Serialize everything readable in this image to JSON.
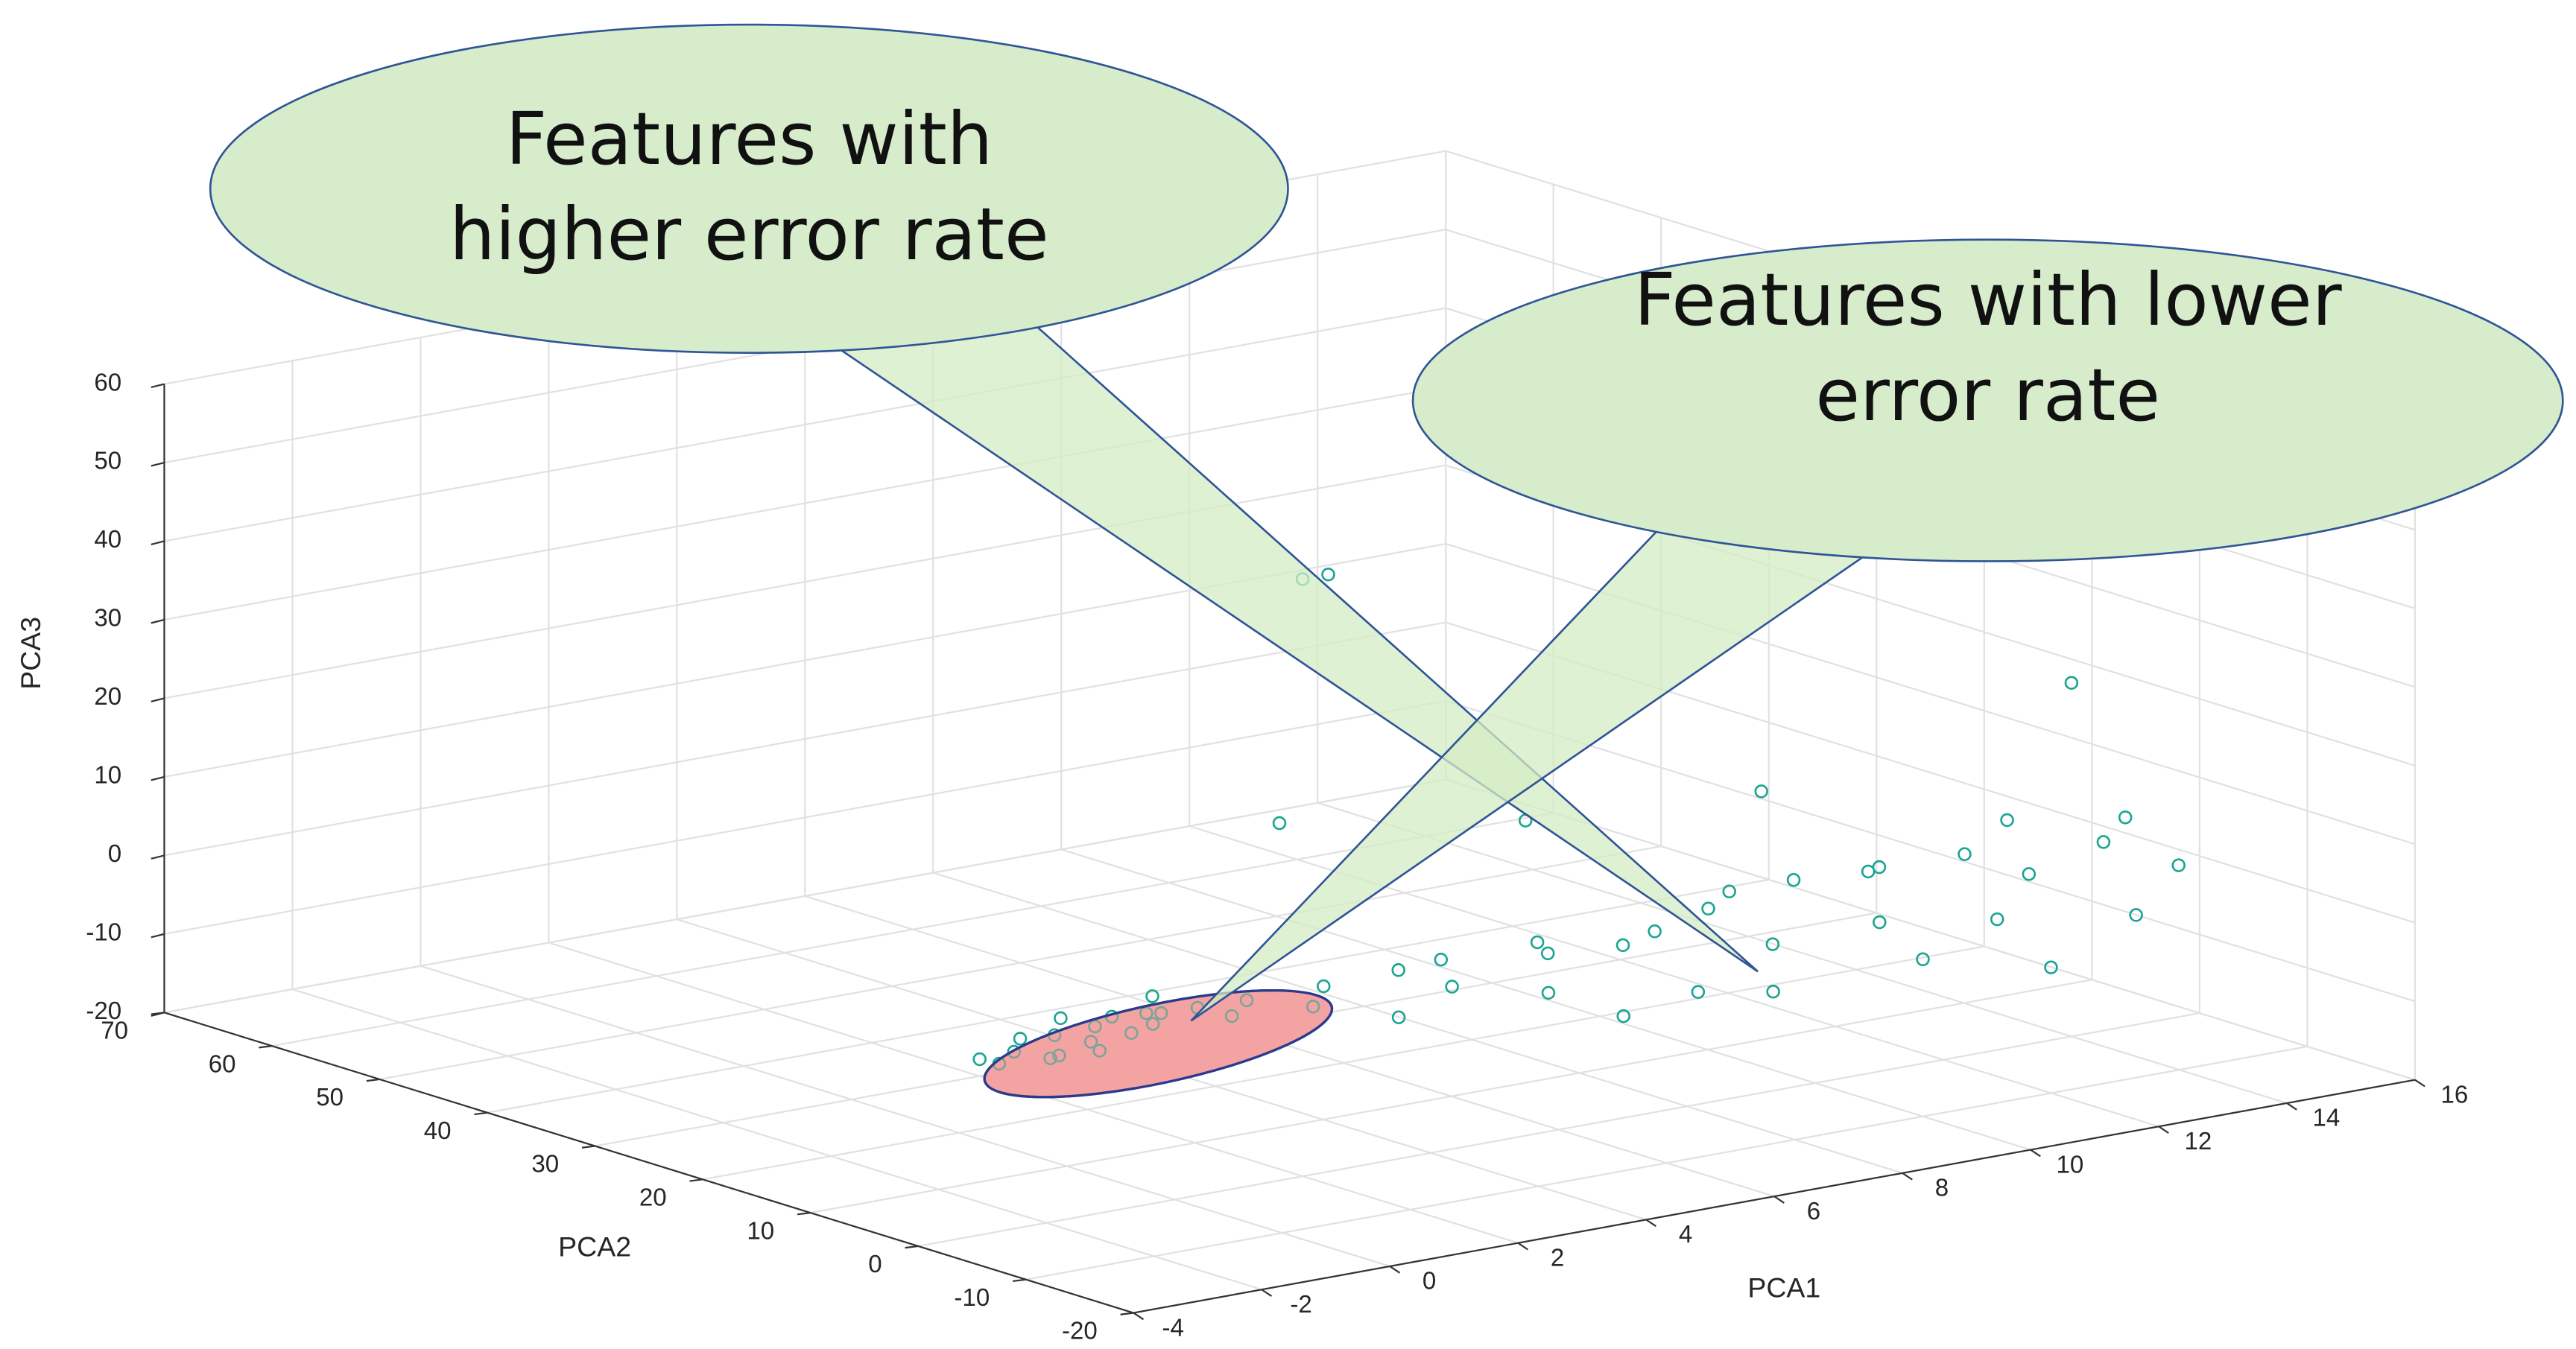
{
  "chart_data": {
    "type": "scatter3d",
    "xlabel": "PCA1",
    "ylabel": "PCA2",
    "zlabel": "PCA3",
    "xlim": [
      -4,
      16
    ],
    "ylim": [
      -20,
      70
    ],
    "zlim": [
      -20,
      60
    ],
    "xticks": [
      -4,
      -2,
      0,
      2,
      4,
      6,
      8,
      10,
      12,
      14,
      16
    ],
    "yticks": [
      -20,
      -10,
      0,
      10,
      20,
      30,
      40,
      50,
      60,
      70
    ],
    "zticks": [
      -20,
      -10,
      0,
      10,
      20,
      30,
      40,
      50,
      60
    ],
    "grid": true,
    "color": "#1aa592",
    "x": [
      -2.4,
      -2.0,
      -1.6,
      -1.2,
      -0.8,
      -0.4,
      0,
      0.4,
      0.8,
      1.2,
      -2.2,
      -1.4,
      -0.6,
      0.2,
      1.0,
      -1.8,
      -1,
      0,
      1.4,
      1.8,
      2.5,
      3,
      3.5,
      4,
      4.5,
      5,
      5.5,
      6,
      6.5,
      7,
      7.5,
      8,
      8.5,
      9,
      9.5,
      10,
      10.5,
      11,
      11.5,
      12,
      12.5,
      13,
      13.5,
      14,
      14.5,
      15,
      8,
      10,
      12,
      6,
      2,
      2.4,
      15.5,
      15.8,
      14,
      8,
      10,
      5,
      14
    ],
    "y": [
      2,
      3,
      2,
      4,
      3,
      5,
      4,
      5,
      6,
      5,
      5,
      6,
      7,
      7,
      8,
      0,
      1,
      2,
      3,
      4,
      2,
      4,
      0,
      3,
      1,
      5,
      -2,
      2,
      4,
      0,
      -4,
      3,
      1,
      -2,
      5,
      2,
      -3,
      0,
      4,
      -5,
      1,
      -2,
      3,
      -6,
      0,
      -4,
      -8,
      -10,
      -10,
      -6,
      0,
      0,
      5,
      3,
      0,
      15,
      5,
      20,
      -5
    ],
    "z": [
      0,
      0.5,
      -0.5,
      1,
      0,
      0.5,
      -0.5,
      1,
      0,
      0.5,
      -1,
      0,
      1,
      0,
      1,
      1,
      0,
      1.5,
      0,
      1,
      0,
      1,
      -2,
      2,
      0,
      1,
      -1,
      3,
      0,
      2,
      -3,
      1,
      4,
      0,
      3,
      5,
      1,
      6,
      3,
      0,
      5,
      3,
      7,
      -2,
      4,
      2,
      -2,
      0,
      -4,
      -3,
      56,
      56,
      40,
      42,
      25,
      10,
      15,
      12,
      10
    ],
    "annotations": [
      {
        "lines": [
          "Features with",
          "higher error rate"
        ]
      },
      {
        "lines": [
          "Features with lower",
          "error rate"
        ]
      }
    ]
  }
}
